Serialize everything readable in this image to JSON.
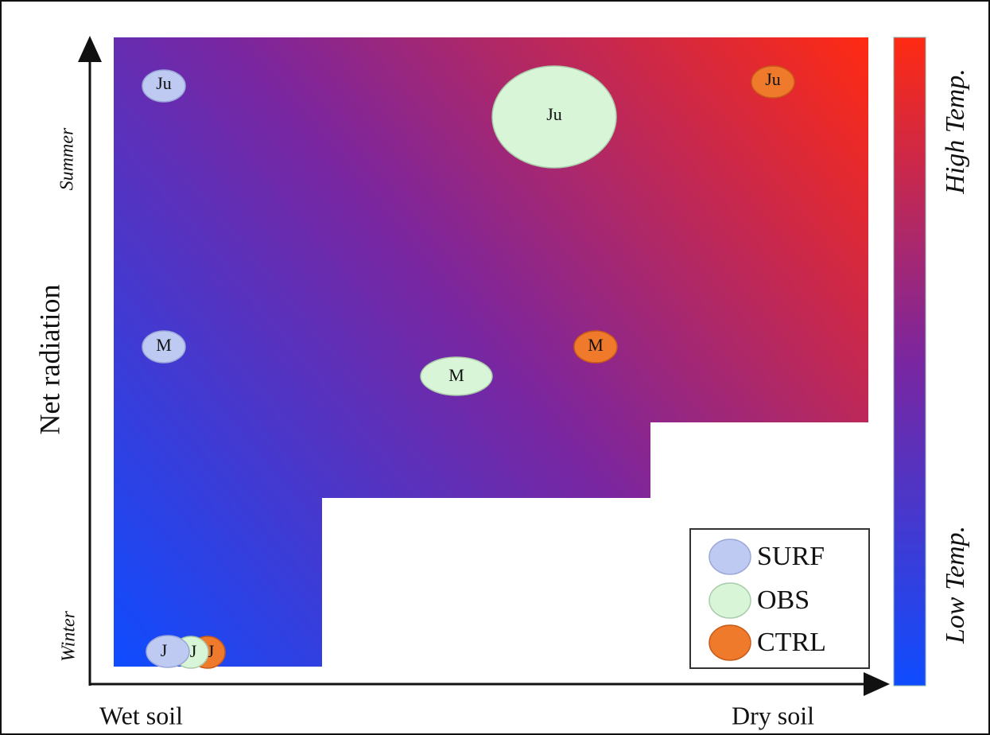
{
  "axes": {
    "x_left": "Wet soil",
    "x_right": "Dry soil",
    "y_label": "Net radiation",
    "y_top": "Summer",
    "y_bottom": "Winter"
  },
  "colorbar": {
    "high": "High Temp.",
    "low": "Low Temp."
  },
  "legend": [
    "SURF",
    "OBS",
    "CTRL"
  ],
  "markers": {
    "SURF": [
      "Ju",
      "M",
      "J"
    ],
    "OBS": [
      "Ju",
      "M",
      "J"
    ],
    "CTRL": [
      "Ju",
      "M",
      "J"
    ]
  }
}
